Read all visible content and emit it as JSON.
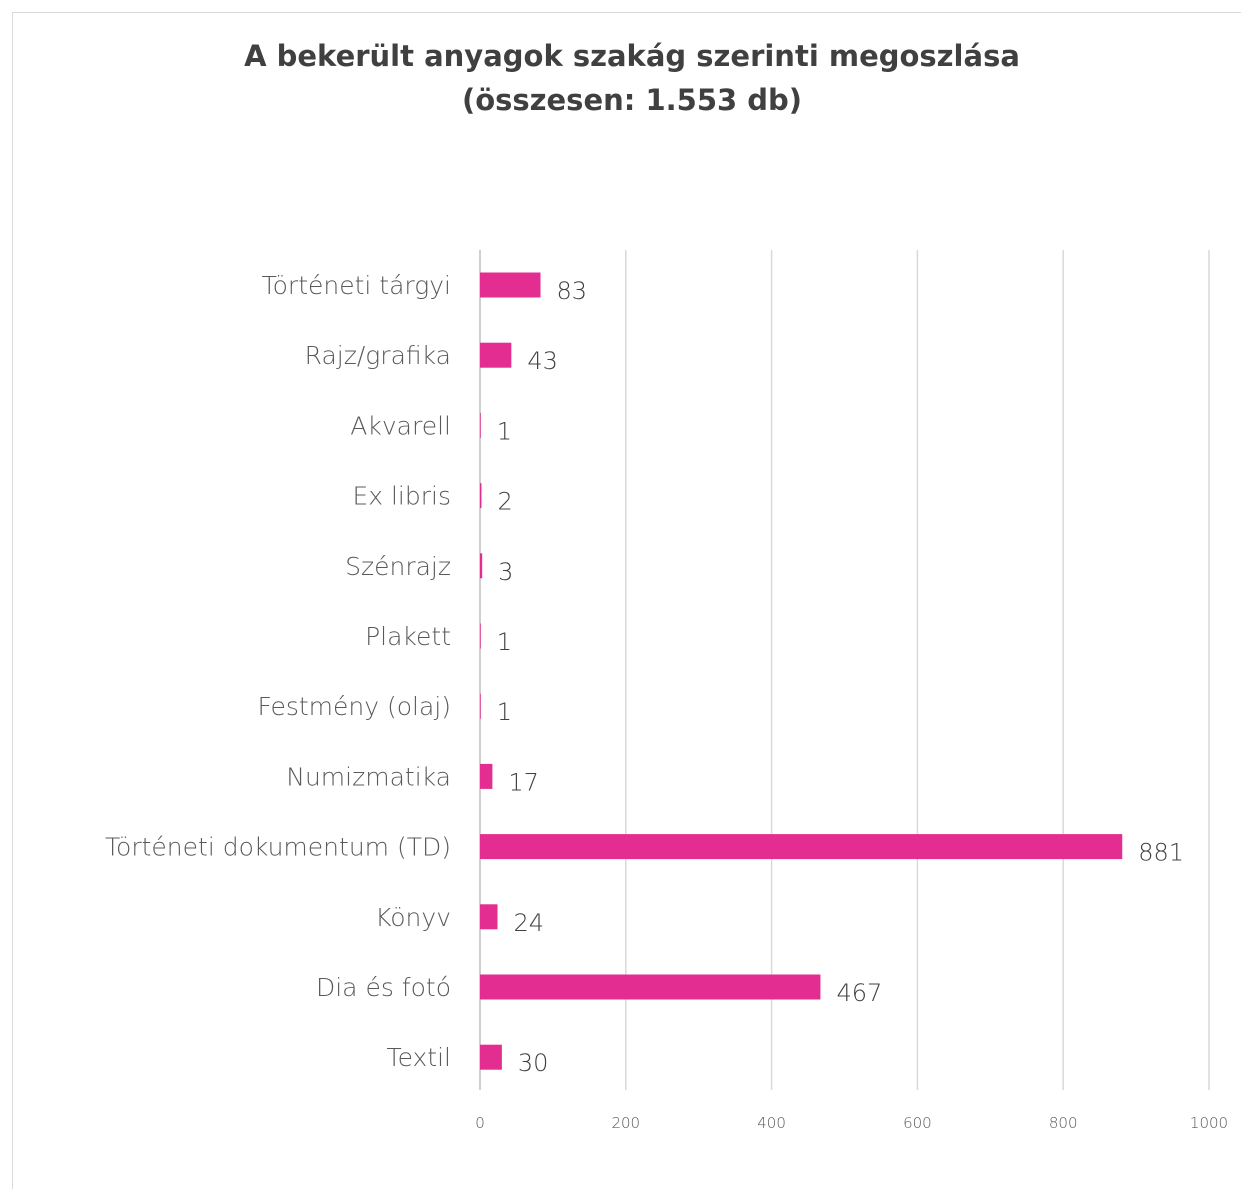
{
  "chart_data": {
    "type": "bar",
    "orientation": "horizontal",
    "title": "A bekerült anyagok szakág szerinti megoszlása",
    "subtitle": "(összesen: 1.553 db)",
    "categories": [
      "Történeti tárgyi",
      "Rajz/grafika",
      "Akvarell",
      "Ex libris",
      "Szénrajz",
      "Plakett",
      "Festmény (olaj)",
      "Numizmatika",
      "Történeti dokumentum (TD)",
      "Könyv",
      "Dia és fotó",
      "Textil"
    ],
    "values": [
      83,
      43,
      1,
      2,
      3,
      1,
      1,
      17,
      881,
      24,
      467,
      30
    ],
    "xlim": [
      0,
      1000
    ],
    "xticks": [
      "0",
      "200",
      "400",
      "600",
      "800",
      "1000"
    ],
    "grid": true,
    "bar_color": "#e32d91"
  }
}
